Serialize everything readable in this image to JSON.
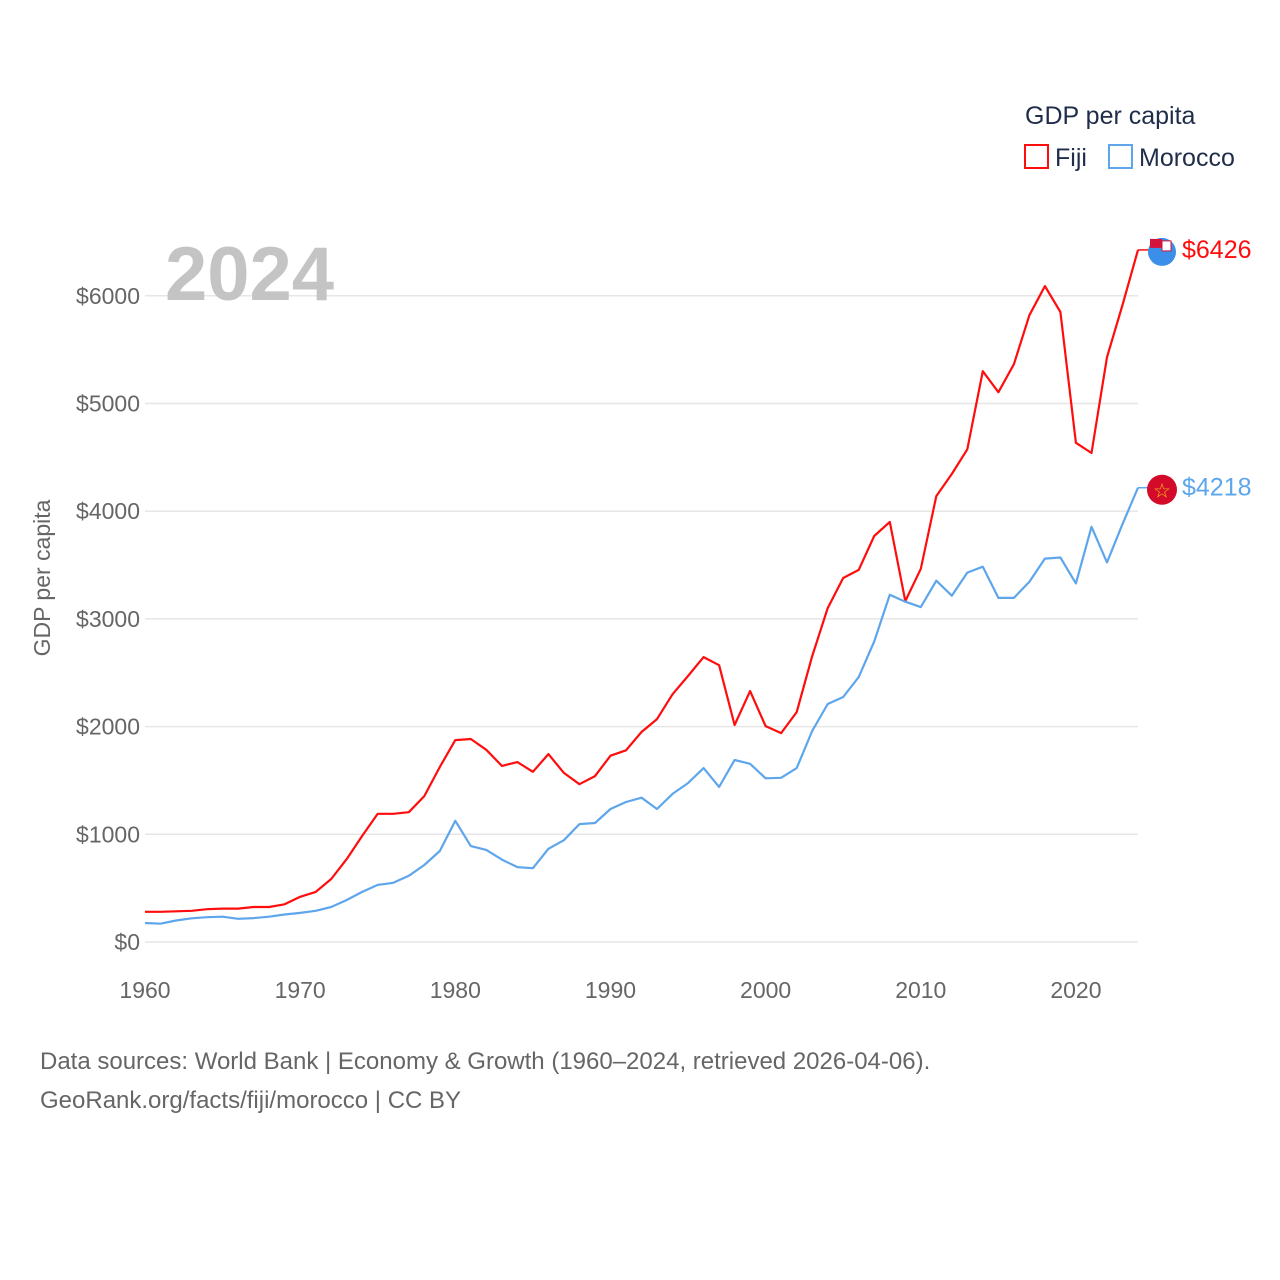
{
  "chart_data": {
    "type": "line",
    "title": "",
    "year_label": "2024",
    "ylabel": "GDP per capita",
    "xlabel": "",
    "xlim": [
      1960,
      2024
    ],
    "ylim": [
      0,
      6426
    ],
    "x_ticks": [
      1960,
      1970,
      1980,
      1990,
      2000,
      2010,
      2020
    ],
    "x_tick_labels": [
      "1960",
      "1970",
      "1980",
      "1990",
      "2000",
      "2010",
      "2020"
    ],
    "y_ticks": [
      0,
      1000,
      2000,
      3000,
      4000,
      5000,
      6000
    ],
    "y_tick_labels": [
      "$0",
      "$1000",
      "$2000",
      "$3000",
      "$4000",
      "$5000",
      "$6000"
    ],
    "grid": true,
    "legend": {
      "title": "GDP per capita",
      "placement": "top-right"
    },
    "x": [
      1960,
      1961,
      1962,
      1963,
      1964,
      1965,
      1966,
      1967,
      1968,
      1969,
      1970,
      1971,
      1972,
      1973,
      1974,
      1975,
      1976,
      1977,
      1978,
      1979,
      1980,
      1981,
      1982,
      1983,
      1984,
      1985,
      1986,
      1987,
      1988,
      1989,
      1990,
      1991,
      1992,
      1993,
      1994,
      1995,
      1996,
      1997,
      1998,
      1999,
      2000,
      2001,
      2002,
      2003,
      2004,
      2005,
      2006,
      2007,
      2008,
      2009,
      2010,
      2011,
      2012,
      2013,
      2014,
      2015,
      2016,
      2017,
      2018,
      2019,
      2020,
      2021,
      2022,
      2023,
      2024
    ],
    "series": [
      {
        "name": "Fiji",
        "color": "#ff0d0d",
        "end_label": "$6426",
        "values": [
          280,
          280,
          285,
          290,
          305,
          310,
          310,
          325,
          325,
          350,
          420,
          465,
          585,
          770,
          985,
          1190,
          1190,
          1205,
          1355,
          1625,
          1875,
          1885,
          1785,
          1635,
          1670,
          1580,
          1745,
          1570,
          1465,
          1540,
          1730,
          1780,
          1950,
          2070,
          2300,
          2470,
          2645,
          2570,
          2015,
          2330,
          2005,
          1940,
          2135,
          2655,
          3100,
          3380,
          3455,
          3770,
          3900,
          3165,
          3465,
          4140,
          4345,
          4575,
          5300,
          5105,
          5365,
          5820,
          6090,
          5850,
          4635,
          4540,
          5430,
          5915,
          6426
        ]
      },
      {
        "name": "Morocco",
        "color": "#5ea6ec",
        "end_label": "$4218",
        "values": [
          176,
          170,
          200,
          220,
          230,
          235,
          215,
          222,
          235,
          255,
          270,
          290,
          325,
          390,
          465,
          530,
          550,
          615,
          715,
          845,
          1125,
          890,
          855,
          765,
          695,
          685,
          865,
          945,
          1095,
          1105,
          1235,
          1300,
          1340,
          1235,
          1375,
          1475,
          1615,
          1440,
          1690,
          1655,
          1520,
          1525,
          1615,
          1960,
          2210,
          2275,
          2460,
          2790,
          3225,
          3160,
          3110,
          3355,
          3215,
          3430,
          3485,
          3195,
          3195,
          3345,
          3560,
          3570,
          3330,
          3855,
          3525,
          3880,
          4218
        ]
      }
    ]
  },
  "footer": {
    "line1": "Data sources: World Bank | Economy & Growth (1960–2024, retrieved 2026-04-06).",
    "line2": "GeoRank.org/facts/fiji/morocco | CC BY"
  }
}
